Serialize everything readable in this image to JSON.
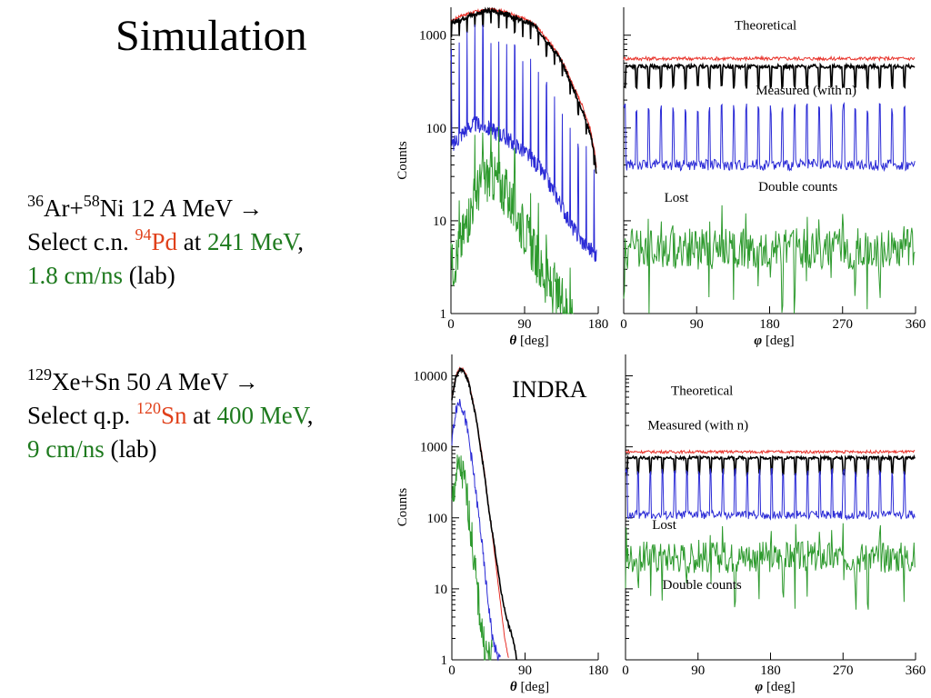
{
  "slide": {
    "title": "Simulation",
    "block1": {
      "line1": {
        "a_mass": "36",
        "a_el": "Ar+",
        "b_mass": "58",
        "b_el": "Ni 12 ",
        "a_unit": "A",
        "rest": " MeV →"
      },
      "line2": {
        "prefix": "Select c.n. ",
        "nuc_mass": "94",
        "nuc_el": "Pd",
        "at": " at ",
        "energy": "241 MeV",
        "comma": ","
      },
      "line3": {
        "velocity": "1.8 cm/ns",
        "suffix": " (lab)"
      }
    },
    "block2": {
      "line1": {
        "a_mass": "129",
        "a_el": "Xe+Sn 50 ",
        "a_unit": "A",
        "rest": " MeV →"
      },
      "line2": {
        "prefix": "Select q.p. ",
        "nuc_mass": "120",
        "nuc_el": "Sn",
        "at": " at ",
        "energy": "400 MeV",
        "comma": ","
      },
      "line3": {
        "velocity": "9 cm/ns",
        "suffix": " (lab)"
      }
    }
  },
  "colors": {
    "measured": "#000000",
    "theoretical": "#e8322a",
    "lost": "#2b2bd6",
    "double": "#2e9a2e",
    "highlight_red": "#e0401a",
    "highlight_green": "#1e7a1e"
  },
  "chart_data": [
    {
      "id": "theta-top",
      "type": "line",
      "ylabel": "Counts",
      "xlabel_sym": "θ",
      "xlabel_unit": " [deg]",
      "xlim": [
        0,
        180
      ],
      "ylim": [
        1,
        2000
      ],
      "log_y": true,
      "xticks": [
        "0",
        "90",
        "180"
      ],
      "yticks": [
        "1",
        "10",
        "100",
        "1000"
      ],
      "series": [
        {
          "key": "theoretical",
          "color": "#e8322a",
          "x": [
            0,
            10,
            20,
            30,
            40,
            50,
            60,
            70,
            80,
            90,
            100,
            110,
            120,
            130,
            140,
            150,
            160,
            170,
            175,
            178
          ],
          "y": [
            1400,
            1600,
            1700,
            1800,
            1850,
            1900,
            1850,
            1750,
            1600,
            1500,
            1350,
            1100,
            850,
            650,
            450,
            280,
            180,
            100,
            60,
            35
          ]
        },
        {
          "key": "measured",
          "color": "#000000",
          "x": [
            0,
            10,
            20,
            30,
            40,
            50,
            60,
            70,
            80,
            90,
            100,
            110,
            120,
            130,
            140,
            150,
            160,
            170,
            175,
            178
          ],
          "y": [
            1350,
            1450,
            1600,
            1700,
            1800,
            1850,
            1750,
            1650,
            1500,
            1400,
            1300,
            1050,
            800,
            620,
            420,
            260,
            160,
            90,
            55,
            30
          ]
        },
        {
          "key": "lost",
          "color": "#2b2bd6",
          "x": [
            0,
            10,
            20,
            30,
            40,
            50,
            60,
            70,
            80,
            90,
            100,
            110,
            120,
            130,
            140,
            150,
            160,
            170,
            178
          ],
          "y": [
            60,
            80,
            100,
            110,
            105,
            95,
            85,
            75,
            65,
            55,
            45,
            35,
            25,
            18,
            12,
            8,
            6,
            5,
            4
          ]
        },
        {
          "key": "double",
          "color": "#2e9a2e",
          "x": [
            0,
            10,
            20,
            30,
            40,
            50,
            60,
            70,
            80,
            90,
            100,
            110,
            120,
            130,
            140,
            150
          ],
          "y": [
            3,
            5,
            10,
            20,
            28,
            30,
            25,
            18,
            12,
            8,
            5,
            3,
            2,
            1.5,
            1.2,
            1
          ]
        }
      ],
      "annotations": []
    },
    {
      "id": "phi-top",
      "type": "line",
      "xlabel_sym": "φ",
      "xlabel_unit": " [deg]",
      "xlim": [
        0,
        360
      ],
      "ylim": [
        1,
        2000
      ],
      "log_y": true,
      "xticks": [
        "0",
        "90",
        "180",
        "270",
        "360"
      ],
      "series": [
        {
          "key": "theoretical",
          "color": "#e8322a",
          "level": 560
        },
        {
          "key": "measured",
          "color": "#000000",
          "level": 460
        },
        {
          "key": "lost",
          "color": "#2b2bd6",
          "level": 40
        },
        {
          "key": "double",
          "color": "#2e9a2e",
          "level": 5
        }
      ],
      "annotations": [
        {
          "text": "Theoretical",
          "x": 175,
          "y": 1150
        },
        {
          "text": "Measured (with n)",
          "x": 225,
          "y": 230
        },
        {
          "text": "Lost",
          "x": 65,
          "y": 16
        },
        {
          "text": "Double counts",
          "x": 215,
          "y": 21
        }
      ]
    },
    {
      "id": "theta-bottom",
      "type": "line",
      "ylabel": "Counts",
      "xlabel_sym": "θ",
      "xlabel_unit": " [deg]",
      "xlim": [
        0,
        180
      ],
      "ylim": [
        1,
        20000
      ],
      "log_y": true,
      "xticks": [
        "0",
        "90",
        "180"
      ],
      "yticks": [
        "1",
        "10",
        "100",
        "1000",
        "10000"
      ],
      "series": [
        {
          "key": "theoretical",
          "color": "#e8322a",
          "x": [
            0,
            5,
            10,
            15,
            20,
            25,
            30,
            35,
            40,
            45,
            50,
            55,
            60,
            65,
            70
          ],
          "y": [
            5000,
            10000,
            13000,
            12000,
            9000,
            5000,
            2500,
            1100,
            450,
            150,
            55,
            18,
            6,
            2,
            1
          ]
        },
        {
          "key": "measured",
          "color": "#000000",
          "x": [
            0,
            5,
            10,
            15,
            20,
            25,
            30,
            35,
            40,
            45,
            50,
            55,
            60,
            65,
            70,
            75,
            80
          ],
          "y": [
            4800,
            9500,
            12500,
            11500,
            8500,
            4800,
            2400,
            1000,
            420,
            140,
            60,
            25,
            10,
            5,
            3,
            2,
            1
          ]
        },
        {
          "key": "lost",
          "color": "#2b2bd6",
          "x": [
            0,
            5,
            10,
            15,
            20,
            25,
            30,
            35,
            40,
            45,
            50,
            55,
            60
          ],
          "y": [
            1200,
            3500,
            4500,
            3000,
            1500,
            600,
            200,
            70,
            20,
            6,
            2,
            1.2,
            1
          ]
        },
        {
          "key": "double",
          "color": "#2e9a2e",
          "x": [
            0,
            5,
            10,
            15,
            20,
            25,
            30,
            35,
            40,
            45,
            50
          ],
          "y": [
            150,
            400,
            500,
            350,
            150,
            45,
            12,
            4,
            1.5,
            1.1,
            1
          ]
        }
      ],
      "annotations": [
        {
          "text": "INDRA",
          "x": 120,
          "y": 5000,
          "big": true
        }
      ]
    },
    {
      "id": "phi-bottom",
      "type": "line",
      "xlabel_sym": "φ",
      "xlabel_unit": " [deg]",
      "xlim": [
        0,
        360
      ],
      "ylim": [
        1,
        20000
      ],
      "log_y": true,
      "xticks": [
        "0",
        "90",
        "180",
        "270",
        "360"
      ],
      "series": [
        {
          "key": "theoretical",
          "color": "#e8322a",
          "level": 850
        },
        {
          "key": "measured",
          "color": "#000000",
          "level": 700
        },
        {
          "key": "lost",
          "color": "#2b2bd6",
          "level": 110
        },
        {
          "key": "double",
          "color": "#2e9a2e",
          "level": 28
        }
      ],
      "annotations": [
        {
          "text": "Theoretical",
          "x": 95,
          "y": 5400
        },
        {
          "text": "Measured (with n)",
          "x": 90,
          "y": 1750
        },
        {
          "text": "Lost",
          "x": 48,
          "y": 70
        },
        {
          "text": "Double counts",
          "x": 95,
          "y": 10
        }
      ]
    }
  ]
}
